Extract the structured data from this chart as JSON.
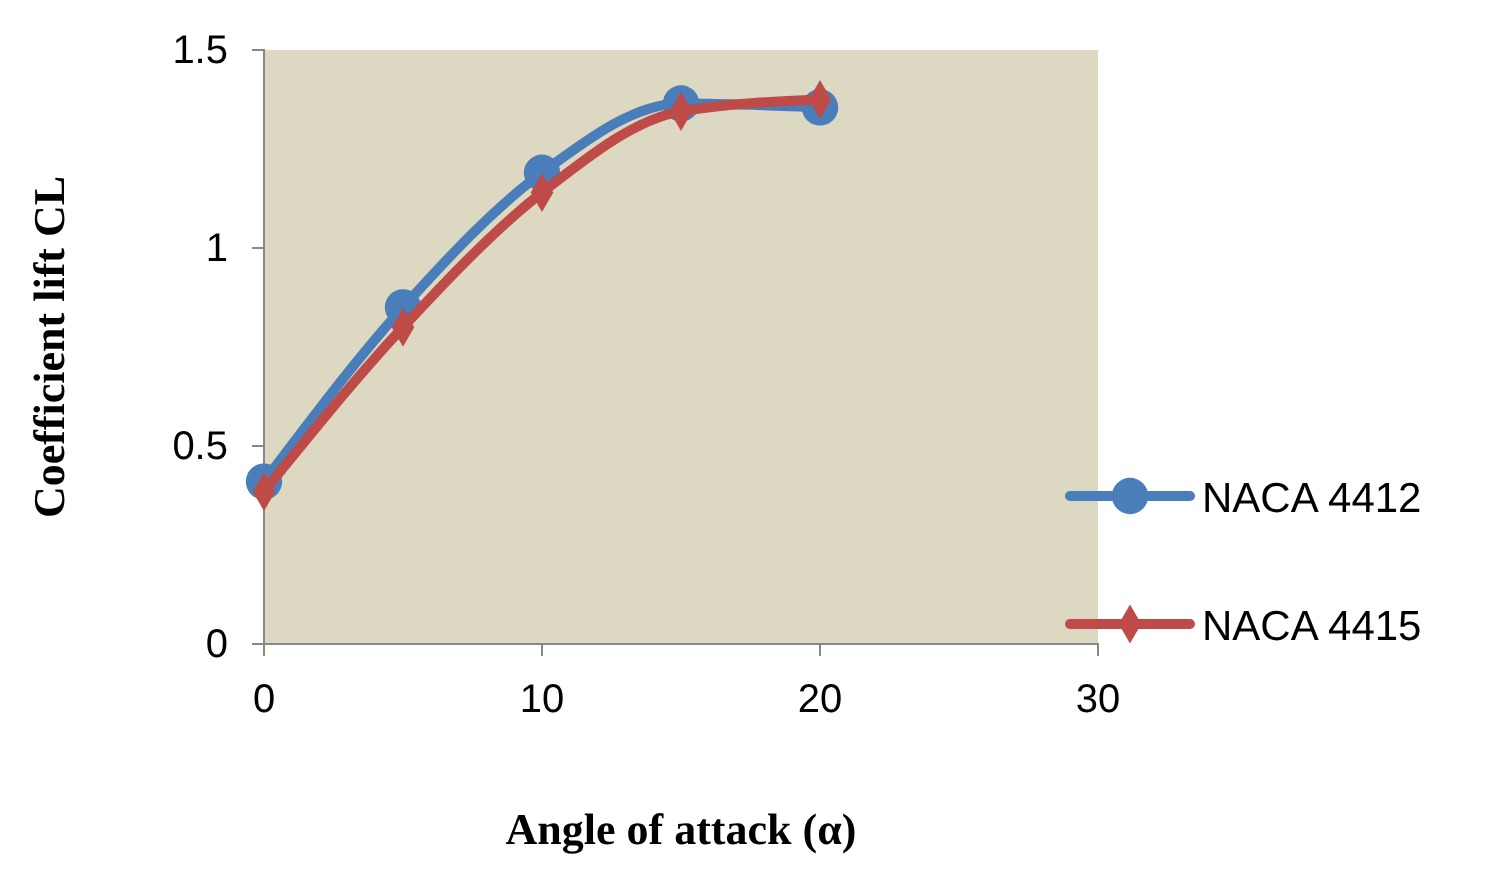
{
  "chart_data": {
    "type": "line",
    "xlabel": "Angle of attack (α)",
    "ylabel": "Coefficient lift CL",
    "x": [
      0,
      5,
      10,
      15,
      20
    ],
    "xlim": [
      0,
      30
    ],
    "xticks": [
      0,
      10,
      20,
      30
    ],
    "ylim": [
      0,
      1.5
    ],
    "yticks": [
      0,
      0.5,
      1,
      1.5
    ],
    "grid": false,
    "legend": "right",
    "series": [
      {
        "name": "NACA 4412",
        "color": "#4a7ebb",
        "marker": "circle",
        "values": [
          0.41,
          0.85,
          1.19,
          1.365,
          1.355
        ]
      },
      {
        "name": "NACA 4415",
        "color": "#be4b48",
        "marker": "diamond",
        "values": [
          0.385,
          0.8,
          1.14,
          1.345,
          1.375
        ]
      }
    ]
  }
}
